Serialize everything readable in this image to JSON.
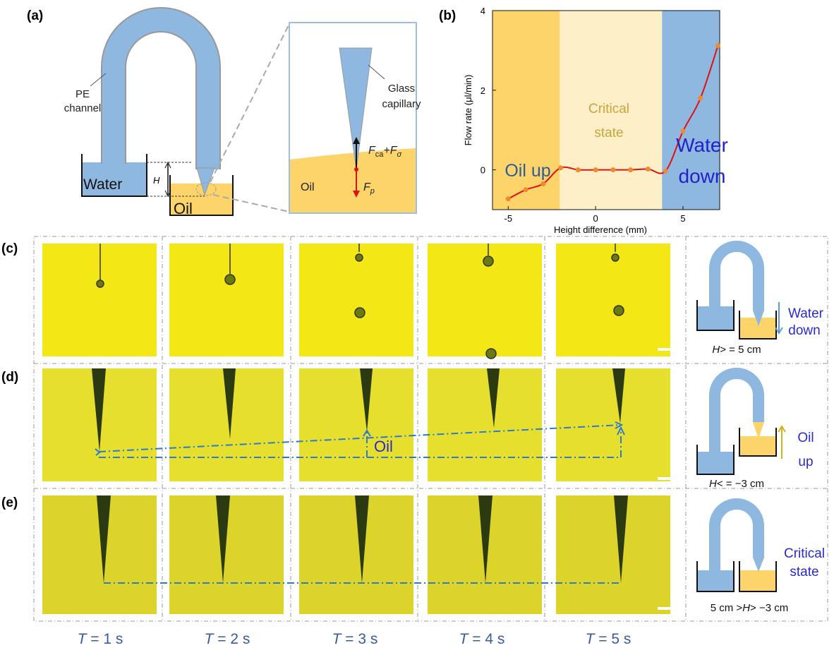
{
  "panel_labels": [
    "(a)",
    "(b)",
    "(c)",
    "(d)",
    "(e)"
  ],
  "diagram_a": {
    "pe_channel": [
      "PE",
      "channel"
    ],
    "water": "Water",
    "height": "H",
    "oil_beaker": "Oil",
    "glass_capillary": [
      "Glass",
      "capillary"
    ],
    "force_up": [
      "F",
      "ca",
      "+F",
      "σ"
    ],
    "oil_inset": "Oil",
    "force_down": [
      "F",
      "p"
    ]
  },
  "chart_data": {
    "type": "line",
    "x_label": "Height difference (mm)",
    "y_label": "Flow rate (μl/min)",
    "x": [
      -5,
      -4,
      -3,
      -2,
      -1,
      0,
      1,
      2,
      3,
      4,
      5,
      6,
      7
    ],
    "values": [
      -0.73,
      -0.5,
      -0.35,
      0.05,
      0,
      0,
      0,
      0,
      0.02,
      -0.03,
      0.97,
      1.8,
      3.12
    ],
    "color": "#e01010",
    "marker_color": "#f08a30",
    "xlim": [
      -5.9,
      7.1
    ],
    "ylim": [
      -1,
      4
    ],
    "xticks": [
      -5,
      0,
      5
    ],
    "yticks": [
      0,
      2,
      4
    ],
    "regions": [
      {
        "label": "Oil up",
        "from": -5.9,
        "to": -2.05,
        "color": "#fcd46a"
      },
      {
        "label": "Critical state",
        "from": -2.05,
        "to": 3.8,
        "color": "#fdf0c8"
      },
      {
        "label": "Water down",
        "from": 3.8,
        "to": 7.1,
        "color": "#8fb8e0"
      }
    ]
  },
  "photo_grid": {
    "oil_marker": "Oil",
    "time_labels": [
      [
        "T",
        " = 1 s"
      ],
      [
        "T",
        " = 2 s"
      ],
      [
        "T",
        " = 3 s"
      ],
      [
        "T",
        " = 4 s"
      ],
      [
        "T",
        " = 5 s"
      ]
    ],
    "schematics": [
      {
        "state": [
          "Water",
          "down"
        ],
        "condition": [
          "H",
          "> = 5 cm"
        ]
      },
      {
        "state": [
          "Oil",
          "up"
        ],
        "condition": [
          "H",
          "< = −3 cm"
        ]
      },
      {
        "state": [
          "Critical",
          "state"
        ],
        "condition": [
          "5 cm >",
          "H",
          "> −3 cm"
        ]
      }
    ]
  }
}
